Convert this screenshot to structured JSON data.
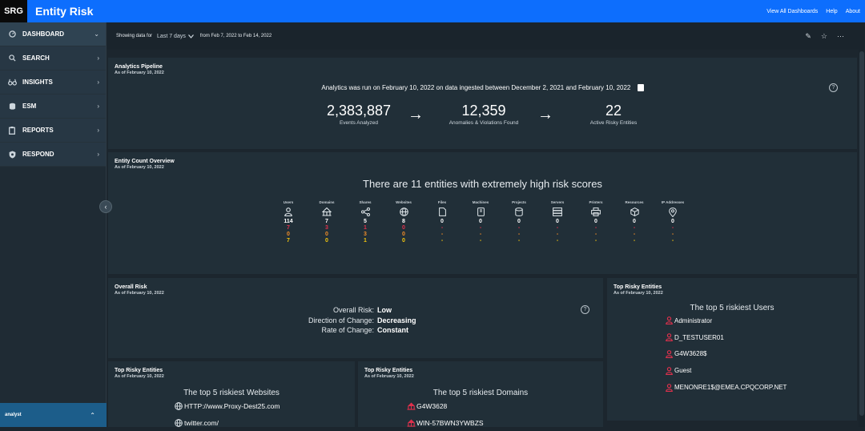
{
  "header": {
    "logo": "SRG",
    "title": "Entity Risk",
    "links": [
      "View All Dashboards",
      "Help",
      "About"
    ]
  },
  "sidebar": {
    "items": [
      {
        "label": "DASHBOARD",
        "icon": "dashboard-icon",
        "chevron": "⌄"
      },
      {
        "label": "SEARCH",
        "icon": "search-icon",
        "chevron": "›"
      },
      {
        "label": "INSIGHTS",
        "icon": "binoculars-icon",
        "chevron": "›"
      },
      {
        "label": "ESM",
        "icon": "database-icon",
        "chevron": "›"
      },
      {
        "label": "REPORTS",
        "icon": "clipboard-icon",
        "chevron": "›"
      },
      {
        "label": "RESPOND",
        "icon": "shield-icon",
        "chevron": "›"
      }
    ],
    "user": "analyst"
  },
  "filter": {
    "prefix": "Showing data for",
    "period": "Last 7 days",
    "range": "from Feb 7, 2022 to Feb 14, 2022"
  },
  "pipeline": {
    "title": "Analytics Pipeline",
    "subtitle": "As of February 10, 2022",
    "message": "Analytics was run on February 10, 2022 on data ingested between December 2, 2021 and February 10, 2022",
    "metrics": [
      {
        "value": "2,383,887",
        "label": "Events Analyzed"
      },
      {
        "value": "12,359",
        "label": "Anomalies & Violations Found"
      },
      {
        "value": "22",
        "label": "Active Risky Entities"
      }
    ]
  },
  "entity_count": {
    "title": "Entity Count Overview",
    "subtitle": "As of February 10, 2022",
    "headline": "There are 11 entities with extremely high risk scores",
    "columns": [
      {
        "name": "Users",
        "icon": "user-icon",
        "total": "114",
        "critical": "7",
        "high": "0",
        "medium": "7"
      },
      {
        "name": "Domains",
        "icon": "domain-icon",
        "total": "7",
        "critical": "3",
        "high": "0",
        "medium": "0"
      },
      {
        "name": "Shares",
        "icon": "share-icon",
        "total": "5",
        "critical": "1",
        "high": "3",
        "medium": "1"
      },
      {
        "name": "Websites",
        "icon": "globe-icon",
        "total": "8",
        "critical": "0",
        "high": "0",
        "medium": "0"
      },
      {
        "name": "Files",
        "icon": "file-icon",
        "total": "0",
        "critical": "-",
        "high": "-",
        "medium": "-"
      },
      {
        "name": "Machines",
        "icon": "machine-icon",
        "total": "0",
        "critical": "-",
        "high": "-",
        "medium": "-"
      },
      {
        "name": "Projects",
        "icon": "project-icon",
        "total": "0",
        "critical": "-",
        "high": "-",
        "medium": "-"
      },
      {
        "name": "Servers",
        "icon": "server-icon",
        "total": "0",
        "critical": "-",
        "high": "-",
        "medium": "-"
      },
      {
        "name": "Printers",
        "icon": "printer-icon",
        "total": "0",
        "critical": "-",
        "high": "-",
        "medium": "-"
      },
      {
        "name": "Resources",
        "icon": "resource-icon",
        "total": "0",
        "critical": "-",
        "high": "-",
        "medium": "-"
      },
      {
        "name": "IP Addresses",
        "icon": "ip-address-icon",
        "total": "0",
        "critical": "-",
        "high": "-",
        "medium": "-"
      }
    ]
  },
  "overall_risk": {
    "title": "Overall Risk",
    "subtitle": "As of February 10, 2022",
    "rows": [
      {
        "key": "Overall Risk:",
        "value": "Low"
      },
      {
        "key": "Direction of Change:",
        "value": "Decreasing"
      },
      {
        "key": "Rate of Change:",
        "value": "Constant"
      }
    ]
  },
  "top_users": {
    "title": "Top Risky Entities",
    "subtitle": "As of February 10, 2022",
    "heading": "The top 5 riskiest Users",
    "items": [
      "Administrator",
      "D_TESTUSER01",
      "G4W3628$",
      "Guest",
      "MENONRE1$@EMEA.CPQCORP.NET"
    ]
  },
  "top_websites": {
    "title": "Top Risky Entities",
    "subtitle": "As of February 10, 2022",
    "heading": "The top 5 riskiest Websites",
    "items": [
      "HTTP://www.Proxy-Dest25.com",
      "twitter.com/"
    ]
  },
  "top_domains": {
    "title": "Top Risky Entities",
    "subtitle": "As of February 10, 2022",
    "heading": "The top 5 riskiest Domains",
    "items": [
      "G4W3628",
      "WIN-57BWN3YWBZS"
    ]
  },
  "colors": {
    "accent": "#0d6efd",
    "critical": "#e0304c",
    "high": "#f28c28",
    "medium": "#f1c40f"
  }
}
